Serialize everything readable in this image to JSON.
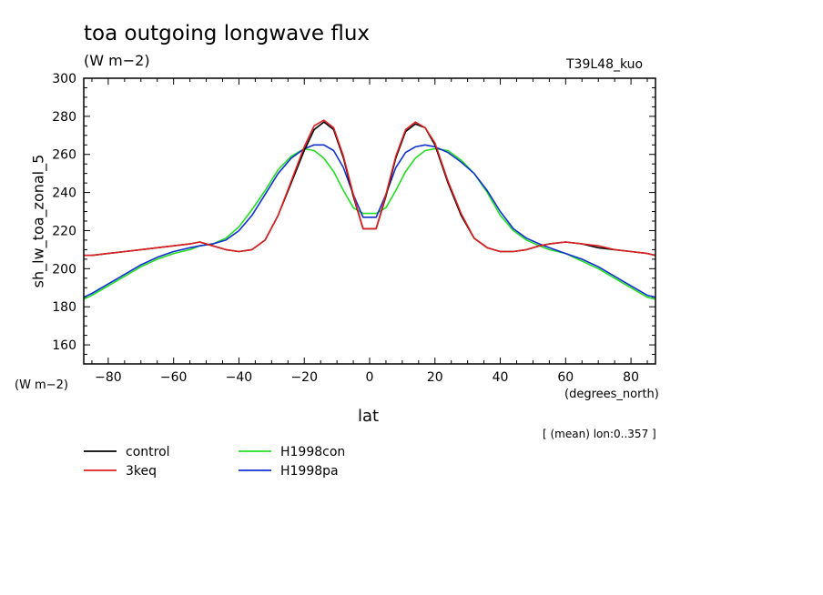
{
  "chart_data": {
    "type": "line",
    "title": "toa outgoing longwave flux",
    "units_label": "(W m−2)",
    "run_label": "T39L48_kuo",
    "ylabel": "sh_lw_toa_zonal_5",
    "y_units_label": "(W m−2)",
    "xlabel": "lat",
    "x_units_label": "(degrees_north)",
    "note": "[ (mean) lon:0..357 ]",
    "xlim": [
      -87.5,
      87.5
    ],
    "ylim": [
      150,
      300
    ],
    "xticks": [
      -80,
      -60,
      -40,
      -20,
      0,
      20,
      40,
      60,
      80
    ],
    "xtick_labels": [
      "−80",
      "−60",
      "−40",
      "−20",
      "0",
      "20",
      "40",
      "60",
      "80"
    ],
    "yticks": [
      160,
      180,
      200,
      220,
      240,
      260,
      280,
      300
    ],
    "ytick_labels": [
      "160",
      "180",
      "200",
      "220",
      "240",
      "260",
      "280",
      "300"
    ],
    "x": [
      -87.5,
      -85,
      -80,
      -75,
      -70,
      -65,
      -60,
      -55,
      -52,
      -48,
      -44,
      -40,
      -36,
      -32,
      -28,
      -24,
      -20,
      -17,
      -14,
      -11,
      -8,
      -5,
      -2,
      0,
      2,
      5,
      8,
      11,
      14,
      17,
      20,
      24,
      28,
      32,
      36,
      40,
      44,
      48,
      52,
      55,
      60,
      65,
      70,
      75,
      80,
      85,
      87.5
    ],
    "series": [
      {
        "name": "control",
        "color": "#000000",
        "values": [
          207,
          207,
          208,
          209,
          210,
          211,
          212,
          213,
          214,
          212,
          210,
          209,
          210,
          215,
          228,
          245,
          262,
          273,
          277,
          273,
          258,
          238,
          221,
          221,
          221,
          238,
          258,
          272,
          276,
          274,
          265,
          245,
          228,
          216,
          211,
          209,
          209,
          210,
          212,
          213,
          214,
          213,
          211,
          210,
          209,
          208,
          207
        ]
      },
      {
        "name": "3keq",
        "color": "#e02020",
        "values": [
          207,
          207,
          208,
          209,
          210,
          211,
          212,
          213,
          214,
          212,
          210,
          209,
          210,
          215,
          228,
          246,
          264,
          275,
          278,
          274,
          259,
          239,
          221,
          221,
          221,
          239,
          259,
          273,
          277,
          274,
          266,
          246,
          229,
          216,
          211,
          209,
          209,
          210,
          212,
          213,
          214,
          213,
          212,
          210,
          209,
          208,
          207
        ]
      },
      {
        "name": "H1998con",
        "color": "#22dd22",
        "values": [
          184,
          186,
          191,
          196,
          201,
          205,
          208,
          210,
          212,
          213,
          216,
          222,
          231,
          241,
          252,
          259,
          263,
          262,
          258,
          251,
          241,
          232,
          229,
          229,
          229,
          232,
          241,
          251,
          258,
          262,
          263,
          262,
          257,
          250,
          240,
          228,
          220,
          215,
          212,
          210,
          208,
          204,
          200,
          195,
          190,
          185,
          184
        ]
      },
      {
        "name": "H1998pa",
        "color": "#1030d0",
        "values": [
          185,
          187,
          192,
          197,
          202,
          206,
          209,
          211,
          212,
          213,
          215,
          220,
          228,
          239,
          250,
          258,
          263,
          265,
          265,
          262,
          253,
          239,
          227,
          227,
          227,
          239,
          253,
          261,
          264,
          265,
          264,
          261,
          256,
          250,
          241,
          230,
          221,
          216,
          213,
          211,
          208,
          205,
          201,
          196,
          191,
          186,
          185
        ]
      }
    ]
  }
}
